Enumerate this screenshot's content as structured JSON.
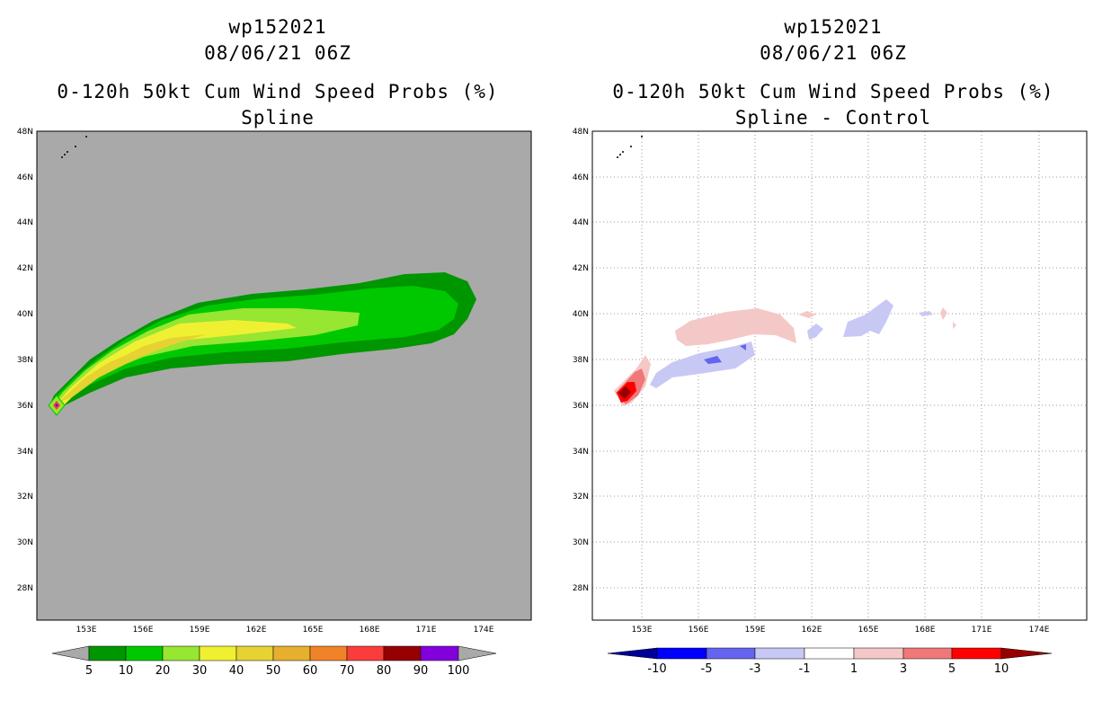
{
  "colors": {
    "land_gray": "#a9a9a9",
    "spline_palette": [
      "#009600",
      "#00c800",
      "#96e632",
      "#f0f032",
      "#e6d232",
      "#e6af2d",
      "#f08228",
      "#fa3c3c",
      "#960000",
      "#8200dc"
    ],
    "diff_palette": [
      "#000096",
      "#0000ff",
      "#6464f0",
      "#c8c8f5",
      "#ffffff",
      "#f5c8c8",
      "#f07878",
      "#ff0000",
      "#960000"
    ]
  },
  "left": {
    "title_line1": "wp152021",
    "title_line2": "08/06/21 06Z",
    "title_line3": "0-120h 50kt Cum Wind Speed Probs (%)",
    "title_line4": "Spline",
    "lat_labels": [
      "48N",
      "46N",
      "44N",
      "42N",
      "40N",
      "38N",
      "36N",
      "34N",
      "32N",
      "30N",
      "28N"
    ],
    "lon_labels": [
      "153E",
      "156E",
      "159E",
      "162E",
      "165E",
      "168E",
      "171E",
      "174E"
    ],
    "colorbar_labels": [
      "5",
      "10",
      "20",
      "30",
      "40",
      "50",
      "60",
      "70",
      "80",
      "90",
      "100"
    ]
  },
  "right": {
    "title_line1": "wp152021",
    "title_line2": "08/06/21 06Z",
    "title_line3": "0-120h 50kt Cum Wind Speed Probs (%)",
    "title_line4": "Spline - Control",
    "lat_labels": [
      "48N",
      "46N",
      "44N",
      "42N",
      "40N",
      "38N",
      "36N",
      "34N",
      "32N",
      "30N",
      "28N"
    ],
    "lon_labels": [
      "153E",
      "156E",
      "159E",
      "162E",
      "165E",
      "168E",
      "171E",
      "174E"
    ],
    "colorbar_labels": [
      "-10",
      "-5",
      "-3",
      "-1",
      "1",
      "3",
      "5",
      "10"
    ]
  }
}
